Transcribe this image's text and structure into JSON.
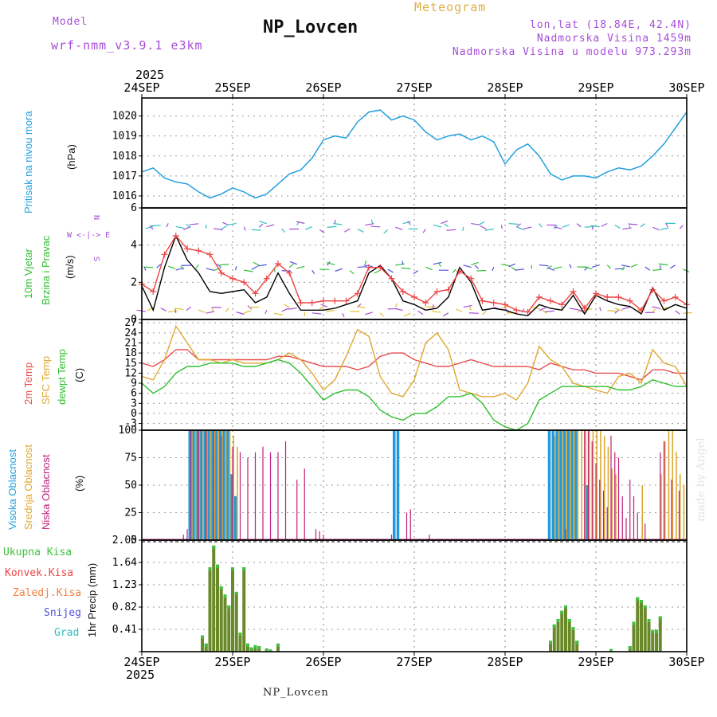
{
  "header": {
    "model_label": "Model",
    "model_name": "wrf-nmm_v3.9.1 e3km",
    "station": "NP_Lovcen",
    "meteogram": "Meteogram",
    "lonlat": "lon,lat (18.84E, 42.4N)",
    "altitude": "Nadmorska Visina 1459m",
    "model_altitude": "Nadmorska Visina u modelu 973.293m",
    "footer_station": "NP_Lovcen",
    "credit": "made by Angel"
  },
  "time_axis": {
    "year": "2025",
    "labels": [
      "24SEP",
      "25SEP",
      "26SEP",
      "27SEP",
      "28SEP",
      "29SEP",
      "30SEP"
    ]
  },
  "panels": {
    "pressure": {
      "label": "Pritisak na nivou mora",
      "unit": "(hPa)"
    },
    "wind": {
      "label1": "10m Vjetar",
      "label2": "Brzina i Pravac",
      "unit": "(m/s)",
      "compass": "W <-|-> E",
      "compass_n": "N",
      "compass_s": "S"
    },
    "temp": {
      "label1": "2m Temp",
      "label2": "SFC Temp",
      "label3": "dewpt Temp",
      "unit": "(C)"
    },
    "cloud": {
      "label1": "Visoka Oblacnost",
      "label2": "Srednja Oblacnost",
      "label3": "Niska Oblacnost",
      "unit": "(%)"
    },
    "precip": {
      "unit": "1hr Precip (mm)",
      "legend": [
        "Ukupna Kisa",
        "Konvek.Kisa",
        "Zaledj.Kisa",
        "Snijeg",
        "Grad"
      ]
    }
  },
  "colors": {
    "pressure": "#22a0e0",
    "wind_speed": "#000000",
    "gust": "#ee4444",
    "t2m": "#e85050",
    "tsfc": "#e0a830",
    "dewpt": "#30c030",
    "high_cloud": "#2299dd",
    "mid_cloud": "#ddaa33",
    "low_cloud": "#c0207a",
    "total_rain": "#40c040",
    "conv_rain": "#ee4444",
    "frz_rain": "#f08040",
    "snow": "#5050e0",
    "hail": "#30c0c0",
    "purple": "#a64dd8"
  },
  "chart_data": [
    {
      "type": "line",
      "title": "Pritisak na nivou mora",
      "ylabel": "(hPa)",
      "x_hours": [
        0,
        3,
        6,
        9,
        12,
        15,
        18,
        21,
        24,
        27,
        30,
        33,
        36,
        39,
        42,
        45,
        48,
        51,
        54,
        57,
        60,
        63,
        66,
        69,
        72,
        75,
        78,
        81,
        84,
        87,
        90,
        93,
        96,
        99,
        102,
        105,
        108,
        111,
        114,
        117,
        120,
        123,
        126,
        129,
        132,
        135,
        138,
        141,
        144
      ],
      "values": [
        1017.2,
        1017.4,
        1016.9,
        1016.7,
        1016.6,
        1016.2,
        1015.9,
        1016.1,
        1016.4,
        1016.2,
        1015.9,
        1016.1,
        1016.6,
        1017.1,
        1017.3,
        1017.9,
        1018.8,
        1019.0,
        1018.9,
        1019.7,
        1020.2,
        1020.3,
        1019.8,
        1020.0,
        1019.8,
        1019.2,
        1018.8,
        1019.0,
        1019.1,
        1018.8,
        1019.0,
        1018.7,
        1017.6,
        1018.3,
        1018.6,
        1018.0,
        1017.1,
        1016.8,
        1017.0,
        1017.0,
        1016.9,
        1017.2,
        1017.4,
        1017.3,
        1017.5,
        1018.0,
        1018.6,
        1019.4,
        1020.2
      ],
      "ylim": [
        1015.4,
        1020.9
      ],
      "yticks": [
        1016,
        1017,
        1018,
        1019,
        1020
      ]
    },
    {
      "type": "line",
      "title": "10m Vjetar Brzina i Pravac",
      "ylabel": "(m/s)",
      "x_hours": [
        0,
        3,
        6,
        9,
        12,
        15,
        18,
        21,
        24,
        27,
        30,
        33,
        36,
        39,
        42,
        45,
        48,
        51,
        54,
        57,
        60,
        63,
        66,
        69,
        72,
        75,
        78,
        81,
        84,
        87,
        90,
        93,
        96,
        99,
        102,
        105,
        108,
        111,
        114,
        117,
        120,
        123,
        126,
        129,
        132,
        135,
        138,
        141,
        144
      ],
      "series": [
        {
          "name": "speed",
          "values": [
            1.8,
            0.5,
            2.8,
            4.5,
            3.2,
            2.5,
            1.5,
            1.4,
            1.5,
            1.6,
            0.9,
            1.2,
            2.5,
            1.4,
            0.5,
            0.5,
            0.5,
            0.6,
            0.8,
            1.0,
            2.5,
            2.9,
            2.2,
            1.0,
            0.8,
            0.5,
            0.6,
            1.2,
            2.8,
            2.0,
            0.5,
            0.6,
            0.5,
            0.3,
            0.2,
            0.8,
            0.6,
            0.5,
            1.3,
            0.3,
            1.3,
            1.0,
            0.8,
            0.7,
            0.3,
            1.7,
            0.5,
            0.8,
            0.6
          ]
        },
        {
          "name": "gust",
          "values": [
            1.9,
            1.5,
            3.5,
            4.5,
            3.8,
            3.7,
            3.5,
            2.5,
            2.2,
            2.0,
            1.4,
            2.2,
            3.0,
            2.5,
            0.9,
            0.9,
            1.0,
            1.0,
            1.0,
            1.4,
            2.8,
            2.8,
            2.2,
            1.5,
            1.2,
            0.9,
            1.5,
            1.6,
            2.6,
            2.2,
            1.0,
            0.9,
            0.8,
            0.5,
            0.4,
            1.2,
            1.0,
            0.8,
            1.5,
            0.6,
            1.4,
            1.2,
            1.2,
            1.0,
            0.5,
            1.6,
            1.0,
            1.2,
            0.8
          ]
        }
      ],
      "ylim": [
        0,
        6
      ],
      "yticks": [
        0,
        2,
        4,
        6
      ]
    },
    {
      "type": "line",
      "title": "2m Temp / SFC Temp / dewpt Temp",
      "ylabel": "(C)",
      "x_hours": [
        0,
        3,
        6,
        9,
        12,
        15,
        18,
        21,
        24,
        27,
        30,
        33,
        36,
        39,
        42,
        45,
        48,
        51,
        54,
        57,
        60,
        63,
        66,
        69,
        72,
        75,
        78,
        81,
        84,
        87,
        90,
        93,
        96,
        99,
        102,
        105,
        108,
        111,
        114,
        117,
        120,
        123,
        126,
        129,
        132,
        135,
        138,
        141,
        144
      ],
      "series": [
        {
          "name": "2m Temp",
          "values": [
            15,
            14,
            16,
            19,
            19,
            16,
            16,
            16,
            16,
            16,
            16,
            16,
            17,
            17,
            16,
            15,
            14,
            14,
            14,
            13,
            14,
            17,
            18,
            18,
            16,
            15,
            14,
            14,
            15,
            16,
            15,
            14,
            14,
            14,
            14,
            13,
            15,
            14,
            13,
            13,
            12,
            12,
            12,
            11,
            10,
            13,
            13,
            12,
            12
          ]
        },
        {
          "name": "SFC Temp",
          "values": [
            11,
            10,
            16,
            26,
            21,
            16,
            16,
            15,
            16,
            15,
            15,
            15,
            16,
            18,
            16,
            12,
            7,
            10,
            17,
            25,
            23,
            11,
            6,
            5,
            10,
            21,
            24,
            19,
            7,
            6,
            5,
            5,
            6,
            4,
            9,
            20,
            16,
            14,
            9,
            8,
            7,
            6,
            11,
            12,
            9,
            19,
            15,
            14,
            8
          ]
        },
        {
          "name": "dewpt Temp",
          "values": [
            9,
            6,
            8,
            12,
            14,
            14,
            15,
            15,
            15,
            14,
            14,
            15,
            16,
            15,
            12,
            8,
            4,
            6,
            7,
            7,
            5,
            1,
            -1,
            -2,
            0,
            0,
            2,
            5,
            5,
            6,
            3,
            -2,
            -4,
            -5,
            -3,
            4,
            6,
            8,
            8,
            8,
            8,
            8,
            7,
            7,
            8,
            10,
            9,
            8,
            8
          ]
        }
      ],
      "ylim": [
        -5,
        28
      ],
      "yticks": [
        -3,
        0,
        3,
        6,
        9,
        12,
        15,
        18,
        21,
        24,
        27
      ]
    },
    {
      "type": "bar",
      "title": "Oblacnost",
      "ylabel": "(%)",
      "ylim": [
        0,
        100
      ],
      "yticks": [
        0,
        25,
        50,
        75,
        100
      ],
      "series": [
        {
          "name": "Visoka Oblacnost",
          "x_hours": [
            13,
            14,
            15,
            16,
            17,
            18,
            19,
            20,
            21,
            22,
            23,
            24,
            25,
            67,
            68,
            108,
            109,
            110,
            111,
            112,
            113,
            114,
            115,
            118
          ],
          "values": [
            100,
            100,
            100,
            100,
            100,
            100,
            100,
            100,
            100,
            100,
            100,
            60,
            40,
            100,
            100,
            100,
            100,
            100,
            100,
            100,
            100,
            100,
            100,
            50
          ]
        },
        {
          "name": "Srednja Oblacnost",
          "x_hours": [
            13,
            14,
            15,
            16,
            17,
            18,
            19,
            20,
            21,
            22,
            23,
            24,
            25,
            109,
            110,
            111,
            112,
            113,
            114,
            115,
            116,
            117,
            118,
            119,
            120,
            121,
            122,
            123,
            124,
            125,
            132,
            137,
            138,
            139,
            140,
            141,
            142,
            143
          ],
          "values": [
            100,
            100,
            100,
            100,
            100,
            100,
            100,
            100,
            100,
            100,
            100,
            95,
            85,
            95,
            100,
            100,
            100,
            100,
            100,
            100,
            100,
            100,
            100,
            100,
            100,
            100,
            95,
            85,
            65,
            60,
            50,
            60,
            90,
            100,
            100,
            80,
            60,
            50
          ]
        },
        {
          "name": "Niska Oblacnost",
          "x_hours": [
            11,
            12,
            13,
            15,
            17,
            19,
            21,
            24,
            26,
            28,
            30,
            32,
            34,
            36,
            38,
            41,
            43,
            46,
            47,
            48,
            66,
            70,
            71,
            76,
            112,
            117,
            118,
            119,
            120,
            121,
            122,
            123,
            124,
            125,
            126,
            127,
            128,
            129,
            130,
            131,
            133,
            137,
            138,
            140,
            142
          ],
          "values": [
            5,
            10,
            100,
            100,
            100,
            100,
            95,
            85,
            80,
            75,
            80,
            85,
            80,
            80,
            90,
            55,
            65,
            10,
            8,
            5,
            5,
            25,
            28,
            5,
            10,
            100,
            100,
            90,
            70,
            55,
            45,
            30,
            95,
            80,
            75,
            40,
            20,
            55,
            40,
            25,
            15,
            80,
            90,
            55,
            45
          ]
        }
      ]
    },
    {
      "type": "bar",
      "title": "1hr Precip (mm)",
      "ylabel": "1hr Precip (mm)",
      "ylim": [
        0,
        2.05
      ],
      "yticks": [
        0,
        0.41,
        0.82,
        1.23,
        1.64,
        2.05
      ],
      "series": [
        {
          "name": "Ukupna Kisa",
          "x_hours": [
            16,
            17,
            18,
            19,
            20,
            21,
            22,
            23,
            24,
            25,
            26,
            27,
            28,
            29,
            30,
            31,
            33,
            34,
            36,
            108,
            109,
            110,
            111,
            112,
            113,
            114,
            115,
            124,
            129,
            130,
            131,
            132,
            133,
            134,
            135,
            136,
            137
          ],
          "values": [
            0.3,
            0.15,
            1.55,
            1.95,
            1.6,
            1.2,
            1.05,
            0.85,
            1.55,
            1.1,
            0.35,
            1.55,
            0.15,
            0.08,
            0.12,
            0.1,
            0.06,
            0.04,
            0.15,
            0.2,
            0.5,
            0.6,
            0.75,
            0.85,
            0.6,
            0.45,
            0.2,
            0.05,
            0.1,
            0.55,
            1.0,
            0.95,
            0.85,
            0.6,
            0.4,
            0.4,
            0.65
          ]
        }
      ]
    }
  ]
}
